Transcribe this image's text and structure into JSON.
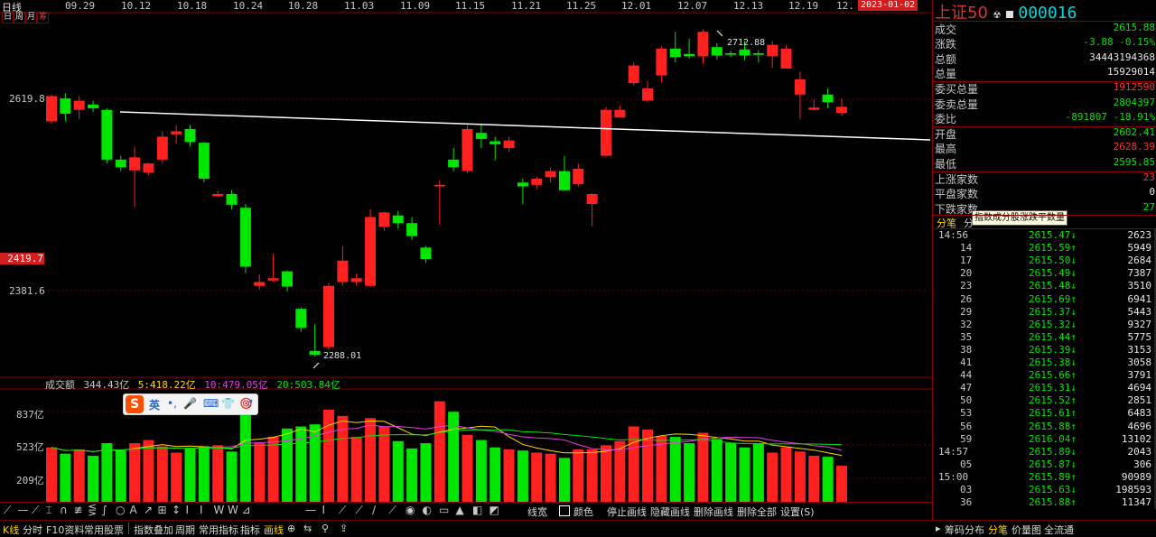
{
  "chart_header": {
    "period_label": "日线",
    "period_tabs": [
      "日",
      "周",
      "月",
      "筹"
    ],
    "date_ticks": [
      "09.29",
      "10.12",
      "10.18",
      "10.24",
      "10.28",
      "11.03",
      "11.09",
      "11.15",
      "11.21",
      "11.25",
      "12.01",
      "12.07",
      "12.13",
      "12.19",
      "12."
    ],
    "current_date": "2023-01-02"
  },
  "price_axis": {
    "labels": [
      "2619.8",
      "2419.7",
      "2381.6"
    ],
    "highlight_label": "2419.7"
  },
  "annotations": {
    "high": "2712.88",
    "low": "2288.01"
  },
  "volume_header": {
    "label": "成交额",
    "value": "344.43亿",
    "ma5": "5:418.22亿",
    "ma10": "10:479.05亿",
    "ma20": "20:503.84亿"
  },
  "volume_axis": {
    "labels": [
      "837亿",
      "523亿",
      "209亿"
    ]
  },
  "ime_bar": {
    "logo": "S",
    "items": [
      "英",
      "•,",
      "🎤",
      "⌨",
      "👕",
      "🎯"
    ]
  },
  "chart_data": {
    "type": "candlestick",
    "title": "上证50 日线",
    "ylim": [
      2270,
      2730
    ],
    "candles": [
      {
        "o": 2595,
        "c": 2628,
        "h": 2630,
        "l": 2592,
        "v": 520
      },
      {
        "o": 2625,
        "c": 2605,
        "h": 2632,
        "l": 2595,
        "v": 460
      },
      {
        "o": 2610,
        "c": 2622,
        "h": 2628,
        "l": 2598,
        "v": 500
      },
      {
        "o": 2617,
        "c": 2612,
        "h": 2622,
        "l": 2607,
        "v": 440
      },
      {
        "o": 2610,
        "c": 2545,
        "h": 2612,
        "l": 2540,
        "v": 560
      },
      {
        "o": 2545,
        "c": 2535,
        "h": 2550,
        "l": 2530,
        "v": 490
      },
      {
        "o": 2531,
        "c": 2548,
        "h": 2562,
        "l": 2483,
        "v": 560
      },
      {
        "o": 2528,
        "c": 2540,
        "h": 2541,
        "l": 2525,
        "v": 590
      },
      {
        "o": 2545,
        "c": 2575,
        "h": 2582,
        "l": 2540,
        "v": 530
      },
      {
        "o": 2578,
        "c": 2582,
        "h": 2590,
        "l": 2566,
        "v": 470
      },
      {
        "o": 2585,
        "c": 2568,
        "h": 2590,
        "l": 2562,
        "v": 510
      },
      {
        "o": 2567,
        "c": 2520,
        "h": 2568,
        "l": 2515,
        "v": 530
      },
      {
        "o": 2497,
        "c": 2500,
        "h": 2504,
        "l": 2496,
        "v": 540
      },
      {
        "o": 2500,
        "c": 2486,
        "h": 2505,
        "l": 2480,
        "v": 480
      },
      {
        "o": 2482,
        "c": 2405,
        "h": 2487,
        "l": 2397,
        "v": 880
      },
      {
        "o": 2380,
        "c": 2385,
        "h": 2395,
        "l": 2375,
        "v": 560
      },
      {
        "o": 2387,
        "c": 2390,
        "h": 2422,
        "l": 2385,
        "v": 620
      },
      {
        "o": 2399,
        "c": 2379,
        "h": 2400,
        "l": 2373,
        "v": 700
      },
      {
        "o": 2350,
        "c": 2325,
        "h": 2352,
        "l": 2320,
        "v": 720
      },
      {
        "o": 2295,
        "c": 2290,
        "h": 2330,
        "l": 2288,
        "v": 740
      },
      {
        "o": 2300,
        "c": 2380,
        "h": 2384,
        "l": 2296,
        "v": 880
      },
      {
        "o": 2385,
        "c": 2413,
        "h": 2432,
        "l": 2380,
        "v": 820
      },
      {
        "o": 2385,
        "c": 2390,
        "h": 2396,
        "l": 2380,
        "v": 620
      },
      {
        "o": 2380,
        "c": 2470,
        "h": 2480,
        "l": 2378,
        "v": 800
      },
      {
        "o": 2457,
        "c": 2476,
        "h": 2477,
        "l": 2452,
        "v": 720
      },
      {
        "o": 2472,
        "c": 2462,
        "h": 2478,
        "l": 2455,
        "v": 580
      },
      {
        "o": 2462,
        "c": 2445,
        "h": 2470,
        "l": 2440,
        "v": 510
      },
      {
        "o": 2430,
        "c": 2415,
        "h": 2432,
        "l": 2410,
        "v": 560
      },
      {
        "o": 2510,
        "c": 2512,
        "h": 2518,
        "l": 2460,
        "v": 960
      },
      {
        "o": 2545,
        "c": 2535,
        "h": 2560,
        "l": 2530,
        "v": 860
      },
      {
        "o": 2530,
        "c": 2585,
        "h": 2590,
        "l": 2527,
        "v": 640
      },
      {
        "o": 2580,
        "c": 2572,
        "h": 2590,
        "l": 2560,
        "v": 590
      },
      {
        "o": 2569,
        "c": 2565,
        "h": 2575,
        "l": 2544,
        "v": 520
      },
      {
        "o": 2560,
        "c": 2570,
        "h": 2575,
        "l": 2555,
        "v": 500
      },
      {
        "o": 2515,
        "c": 2510,
        "h": 2520,
        "l": 2487,
        "v": 490
      },
      {
        "o": 2512,
        "c": 2520,
        "h": 2523,
        "l": 2506,
        "v": 470
      },
      {
        "o": 2522,
        "c": 2530,
        "h": 2535,
        "l": 2515,
        "v": 460
      },
      {
        "o": 2530,
        "c": 2505,
        "h": 2550,
        "l": 2504,
        "v": 420
      },
      {
        "o": 2513,
        "c": 2533,
        "h": 2540,
        "l": 2510,
        "v": 500
      },
      {
        "o": 2487,
        "c": 2500,
        "h": 2501,
        "l": 2458,
        "v": 500
      },
      {
        "o": 2550,
        "c": 2610,
        "h": 2614,
        "l": 2548,
        "v": 540
      },
      {
        "o": 2600,
        "c": 2610,
        "h": 2616,
        "l": 2600,
        "v": 580
      },
      {
        "o": 2645,
        "c": 2668,
        "h": 2672,
        "l": 2642,
        "v": 720
      },
      {
        "o": 2622,
        "c": 2638,
        "h": 2648,
        "l": 2620,
        "v": 690
      },
      {
        "o": 2655,
        "c": 2690,
        "h": 2693,
        "l": 2646,
        "v": 630
      },
      {
        "o": 2690,
        "c": 2679,
        "h": 2712,
        "l": 2672,
        "v": 620
      },
      {
        "o": 2683,
        "c": 2680,
        "h": 2703,
        "l": 2677,
        "v": 560
      },
      {
        "o": 2680,
        "c": 2712,
        "h": 2715,
        "l": 2670,
        "v": 660
      },
      {
        "o": 2692,
        "c": 2681,
        "h": 2697,
        "l": 2676,
        "v": 600
      },
      {
        "o": 2684,
        "c": 2682,
        "h": 2687,
        "l": 2679,
        "v": 560
      },
      {
        "o": 2689,
        "c": 2681,
        "h": 2700,
        "l": 2675,
        "v": 520
      },
      {
        "o": 2684,
        "c": 2682,
        "h": 2688,
        "l": 2672,
        "v": 560
      },
      {
        "o": 2680,
        "c": 2695,
        "h": 2700,
        "l": 2665,
        "v": 470
      },
      {
        "o": 2664,
        "c": 2690,
        "h": 2694,
        "l": 2664,
        "v": 520
      },
      {
        "o": 2630,
        "c": 2650,
        "h": 2660,
        "l": 2598,
        "v": 480
      },
      {
        "o": 2610,
        "c": 2613,
        "h": 2624,
        "l": 2609,
        "v": 440
      },
      {
        "o": 2630,
        "c": 2620,
        "h": 2638,
        "l": 2612,
        "v": 430
      },
      {
        "o": 2606,
        "c": 2614,
        "h": 2625,
        "l": 2602,
        "v": 344
      }
    ],
    "trend_line": {
      "from": [
        0,
        2600
      ],
      "to": [
        57,
        2576
      ]
    }
  },
  "right_panel": {
    "title": "上证50",
    "code": "000016",
    "rows": [
      {
        "label": "成交",
        "value": "2615.88",
        "color": "green"
      },
      {
        "label": "涨跌",
        "value": "-3.88  -0.15%",
        "color": "green"
      },
      {
        "label": "总额",
        "value": "34443194368",
        "color": "white"
      },
      {
        "label": "总量",
        "value": "15929014",
        "color": "white"
      },
      {
        "label": "委买总量",
        "value": "1912590",
        "color": "red"
      },
      {
        "label": "委卖总量",
        "value": "2804397",
        "color": "green"
      },
      {
        "label": "委比",
        "value": "-891807 -18.91%",
        "color": "green"
      },
      {
        "label": "开盘",
        "value": "2602.41",
        "color": "green"
      },
      {
        "label": "最高",
        "value": "2628.39",
        "color": "red"
      },
      {
        "label": "最低",
        "value": "2595.85",
        "color": "green"
      },
      {
        "label": "上涨家数",
        "value": "23",
        "color": "red"
      },
      {
        "label": "平盘家数",
        "value": "0",
        "color": "white"
      },
      {
        "label": "下跌家数",
        "value": "27",
        "color": "green"
      }
    ],
    "tooltip": "指数成分股涨跌平数量",
    "tabs": [
      "分笔",
      "分"
    ],
    "ticks": [
      {
        "t": "14:56",
        "p": "2615.47↓",
        "v": "2623"
      },
      {
        "t": "14",
        "p": "2615.59↑",
        "v": "5949"
      },
      {
        "t": "17",
        "p": "2615.50↓",
        "v": "2684"
      },
      {
        "t": "20",
        "p": "2615.49↓",
        "v": "7387"
      },
      {
        "t": "23",
        "p": "2615.48↓",
        "v": "3510"
      },
      {
        "t": "26",
        "p": "2615.69↑",
        "v": "6941"
      },
      {
        "t": "29",
        "p": "2615.37↓",
        "v": "5443"
      },
      {
        "t": "32",
        "p": "2615.32↓",
        "v": "9327"
      },
      {
        "t": "35",
        "p": "2615.44↑",
        "v": "5775"
      },
      {
        "t": "38",
        "p": "2615.39↓",
        "v": "3153"
      },
      {
        "t": "41",
        "p": "2615.38↓",
        "v": "3058"
      },
      {
        "t": "44",
        "p": "2615.66↑",
        "v": "3791"
      },
      {
        "t": "47",
        "p": "2615.31↓",
        "v": "4694"
      },
      {
        "t": "50",
        "p": "2615.52↑",
        "v": "2851"
      },
      {
        "t": "53",
        "p": "2615.61↑",
        "v": "6483"
      },
      {
        "t": "56",
        "p": "2615.88↑",
        "v": "4696"
      },
      {
        "t": "59",
        "p": "2616.04↑",
        "v": "13102"
      },
      {
        "t": "14:57",
        "p": "2615.89↓",
        "v": "2043"
      },
      {
        "t": "05",
        "p": "2615.87↓",
        "v": "306"
      },
      {
        "t": "15:00",
        "p": "2615.89↑",
        "v": "90989"
      },
      {
        "t": "03",
        "p": "2615.63↓",
        "v": "198593"
      },
      {
        "t": "36",
        "p": "2615.88↑",
        "v": "11347"
      }
    ]
  },
  "drawbar": {
    "tools": [
      "⟋",
      "—",
      "⟋",
      "⌶",
      "∩",
      "≢",
      "⋚",
      "∫",
      "○",
      "A",
      "↗",
      "⊞",
      "↕",
      "I",
      "I",
      "W",
      "W",
      "⊿"
    ],
    "tools2": [
      "—",
      "I",
      "⟋",
      "⟋",
      "∕",
      "⟋",
      "◉",
      "◐",
      "▭",
      "▲",
      "◧",
      "◩"
    ],
    "line_width": "线宽",
    "color": "颜色",
    "stop": "停止画线",
    "hide": "隐藏画线",
    "delete": "删除画线",
    "delete_all": "删除全部",
    "settings": "设置(S)"
  },
  "bottom_tabs": {
    "left": [
      "K线",
      "分时",
      "F10资料",
      "常用股票"
    ],
    "mid": [
      "指数叠加",
      "周期",
      "常用指标",
      "指标",
      "画线"
    ],
    "right": [
      "筹码分布",
      "分笔",
      "价量图",
      "全流通"
    ]
  }
}
